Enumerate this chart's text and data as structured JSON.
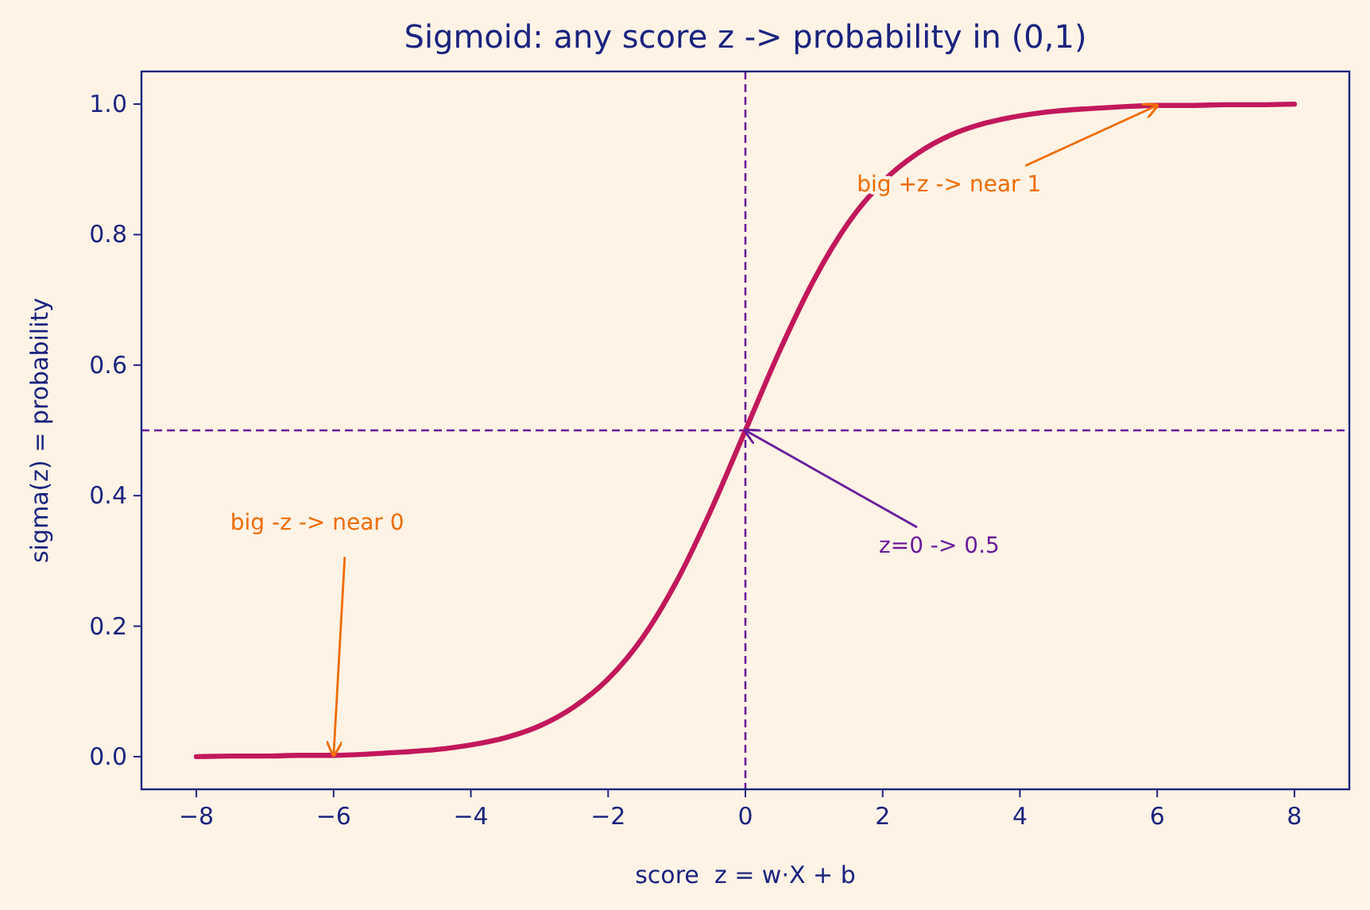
{
  "chart_data": {
    "type": "line",
    "title": "Sigmoid: any score z -> probability in (0,1)",
    "xlabel": "score  z = w·X + b",
    "ylabel": "sigma(z) = probability",
    "x": [
      -8,
      -7.5,
      -7,
      -6.5,
      -6,
      -5.5,
      -5,
      -4.5,
      -4,
      -3.5,
      -3,
      -2.5,
      -2,
      -1.5,
      -1,
      -0.5,
      0,
      0.5,
      1,
      1.5,
      2,
      2.5,
      3,
      3.5,
      4,
      4.5,
      5,
      5.5,
      6,
      6.5,
      7,
      7.5,
      8
    ],
    "series": [
      {
        "color": "#c2185b",
        "values": [
          0.0,
          0.001,
          0.001,
          0.002,
          0.002,
          0.004,
          0.007,
          0.011,
          0.018,
          0.029,
          0.047,
          0.076,
          0.119,
          0.182,
          0.269,
          0.378,
          0.5,
          0.622,
          0.731,
          0.818,
          0.881,
          0.924,
          0.953,
          0.971,
          0.982,
          0.989,
          0.993,
          0.996,
          0.998,
          0.998,
          0.999,
          0.999,
          1.0
        ]
      }
    ],
    "xlim": [
      -8.8,
      8.8
    ],
    "ylim": [
      -0.05,
      1.05
    ],
    "xticks": [
      {
        "value": -8,
        "label": "−8"
      },
      {
        "value": -6,
        "label": "−6"
      },
      {
        "value": -4,
        "label": "−4"
      },
      {
        "value": -2,
        "label": "−2"
      },
      0,
      2,
      4,
      6,
      8
    ],
    "yticks": [
      {
        "value": 0,
        "label": "0.0"
      },
      0.2,
      0.4,
      0.6,
      0.8,
      {
        "value": 1,
        "label": "1.0"
      }
    ],
    "ref_lines": [
      {
        "axis": "x",
        "value": 0,
        "color": "#6a1b9a",
        "line_style": "dashed"
      },
      {
        "axis": "y",
        "value": 0.5,
        "color": "#6a1b9a",
        "line_style": "dashed"
      }
    ],
    "annotations": [
      {
        "text": "big -z -> near 0",
        "x": -6,
        "y": 0.002
      },
      {
        "text": "big +z -> near 1",
        "x": 6,
        "y": 0.998
      },
      {
        "text": "z=0 -> 0.5",
        "x": 0,
        "y": 0.5
      }
    ],
    "grid": false,
    "marker": "none",
    "line_style": "solid"
  }
}
